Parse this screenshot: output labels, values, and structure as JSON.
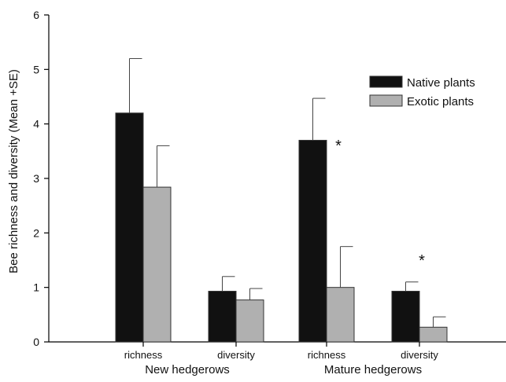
{
  "chart_data": {
    "type": "bar",
    "ylabel": "Bee richness and diversity (Mean +SE)",
    "ylim": [
      0,
      6
    ],
    "yticks": [
      "0",
      "1",
      "2",
      "3",
      "4",
      "5",
      "6"
    ],
    "groups": [
      {
        "label": "New hedgerows",
        "categories": [
          "richness",
          "diversity"
        ]
      },
      {
        "label": "Mature hedgerows",
        "categories": [
          "richness",
          "diversity"
        ]
      }
    ],
    "categories": [
      "richness",
      "diversity",
      "richness",
      "diversity"
    ],
    "series": [
      {
        "name": "Native plants",
        "color": "#111111",
        "values": [
          4.2,
          0.93,
          3.7,
          0.93
        ],
        "se": [
          1.0,
          0.27,
          0.77,
          0.17
        ]
      },
      {
        "name": "Exotic plants",
        "color": "#b0b0b0",
        "values": [
          2.84,
          0.77,
          1.0,
          0.27
        ],
        "se": [
          0.76,
          0.21,
          0.75,
          0.19
        ]
      }
    ],
    "annotations": [
      {
        "text": "*",
        "category_index": 2
      },
      {
        "text": "*",
        "category_index": 3
      }
    ],
    "legend": "top-right",
    "grid": false
  }
}
